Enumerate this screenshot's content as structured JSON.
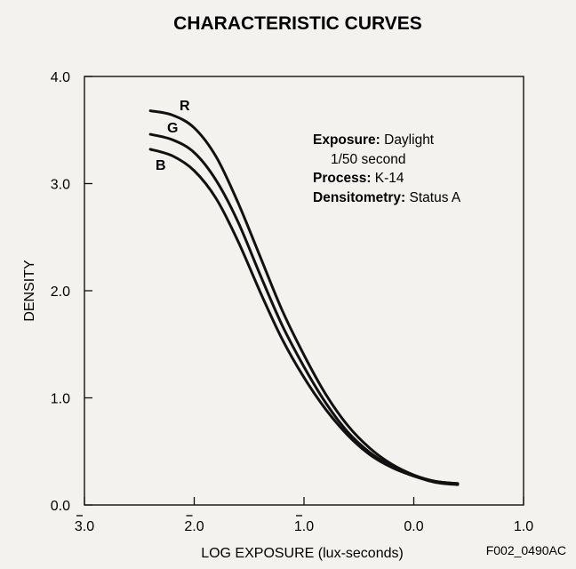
{
  "chart_data": {
    "type": "line",
    "title": "CHARACTERISTIC CURVES",
    "xlabel": "LOG EXPOSURE (lux-seconds)",
    "ylabel": "DENSITY",
    "xlim": [
      -3.0,
      1.0
    ],
    "ylim": [
      0.0,
      4.0
    ],
    "x_ticks": [
      {
        "value": -3.0,
        "label": "3.0",
        "bar": true
      },
      {
        "value": -2.0,
        "label": "2.0",
        "bar": true
      },
      {
        "value": -1.0,
        "label": "1.0",
        "bar": true
      },
      {
        "value": 0.0,
        "label": "0.0",
        "bar": false
      },
      {
        "value": 1.0,
        "label": "1.0",
        "bar": false
      }
    ],
    "y_ticks": [
      {
        "value": 0.0,
        "label": "0.0"
      },
      {
        "value": 1.0,
        "label": "1.0"
      },
      {
        "value": 2.0,
        "label": "2.0"
      },
      {
        "value": 3.0,
        "label": "3.0"
      },
      {
        "value": 4.0,
        "label": "4.0"
      }
    ],
    "grid": false,
    "series": [
      {
        "name": "R",
        "color": "#111111",
        "x": [
          -2.4,
          -2.2,
          -2.0,
          -1.8,
          -1.6,
          -1.4,
          -1.2,
          -1.0,
          -0.8,
          -0.6,
          -0.4,
          -0.2,
          0.0,
          0.2,
          0.4
        ],
        "y": [
          3.68,
          3.64,
          3.52,
          3.25,
          2.82,
          2.32,
          1.82,
          1.4,
          1.03,
          0.74,
          0.53,
          0.38,
          0.28,
          0.22,
          0.2
        ]
      },
      {
        "name": "G",
        "color": "#111111",
        "x": [
          -2.4,
          -2.2,
          -2.0,
          -1.8,
          -1.6,
          -1.4,
          -1.2,
          -1.0,
          -0.8,
          -0.6,
          -0.4,
          -0.2,
          0.0,
          0.2,
          0.4
        ],
        "y": [
          3.46,
          3.41,
          3.29,
          3.03,
          2.64,
          2.15,
          1.68,
          1.29,
          0.95,
          0.68,
          0.49,
          0.36,
          0.27,
          0.22,
          0.2
        ]
      },
      {
        "name": "B",
        "color": "#111111",
        "x": [
          -2.4,
          -2.2,
          -2.0,
          -1.8,
          -1.6,
          -1.4,
          -1.2,
          -1.0,
          -0.8,
          -0.6,
          -0.4,
          -0.2,
          0.0,
          0.2,
          0.4
        ],
        "y": [
          3.32,
          3.26,
          3.12,
          2.86,
          2.46,
          1.99,
          1.55,
          1.19,
          0.89,
          0.65,
          0.47,
          0.35,
          0.27,
          0.21,
          0.19
        ]
      }
    ],
    "annotations": [
      {
        "bold": "Exposure:",
        "text": " Daylight"
      },
      {
        "bold": "",
        "text": "1/50 second"
      },
      {
        "bold": "Process:",
        "text": " K-14"
      },
      {
        "bold": "Densitometry:",
        "text": " Status A"
      }
    ],
    "figure_code": "F002_0490AC"
  }
}
